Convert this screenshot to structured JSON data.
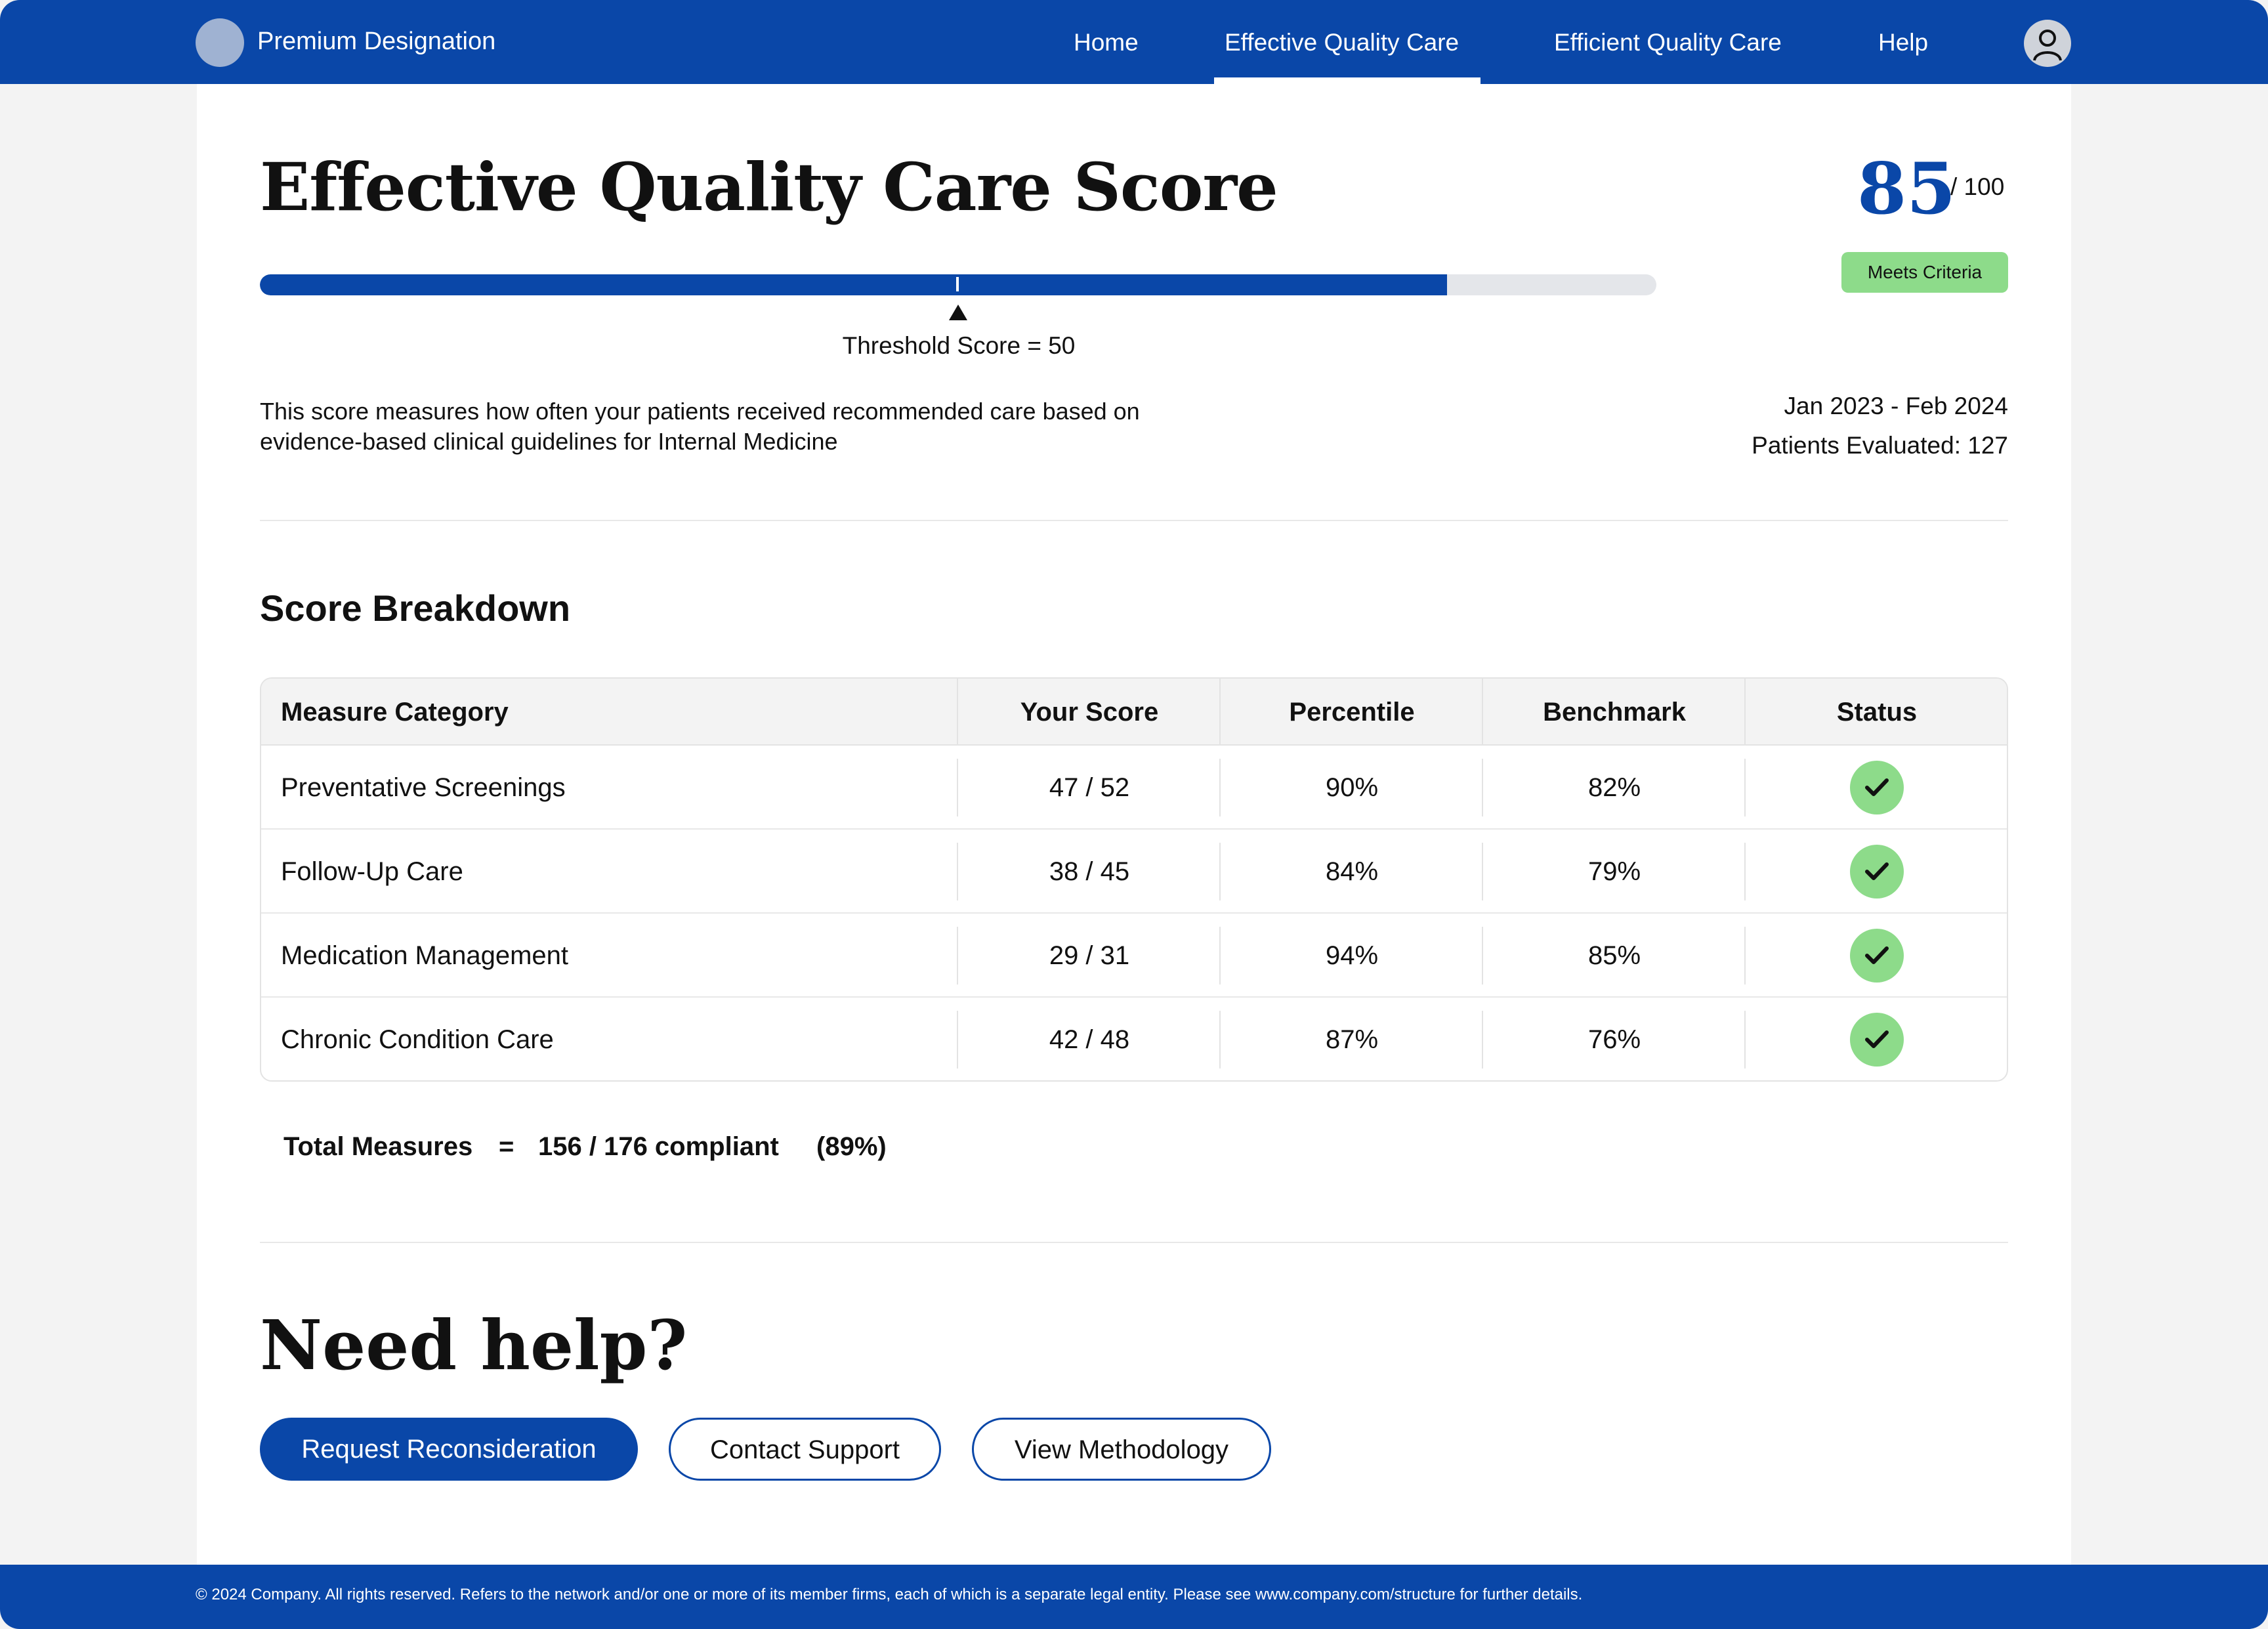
{
  "header": {
    "brand": "Premium Designation",
    "nav": [
      {
        "label": "Home"
      },
      {
        "label": "Effective Quality Care",
        "active": true
      },
      {
        "label": "Efficient Quality Care"
      },
      {
        "label": "Help"
      }
    ],
    "avatar_icon": "user-icon"
  },
  "score": {
    "title": "Effective Quality Care Score",
    "value": "85",
    "max": "/ 100",
    "progress_fraction": 0.85,
    "badge": "Meets Criteria",
    "threshold_label": "Threshold Score = 50",
    "description": "This score measures how often your patients received recommended care based on evidence-based clinical guidelines for Internal Medicine",
    "date_range": "Jan 2023 - Feb 2024",
    "patients_evaluated": "Patients Evaluated: 127"
  },
  "breakdown": {
    "title": "Score Breakdown",
    "columns": [
      "Measure Category",
      "Your Score",
      "Percentile",
      "Benchmark",
      "Status"
    ],
    "rows": [
      {
        "category": "Preventative Screenings",
        "score": "47 / 52",
        "percentile": "90%",
        "benchmark": "82%",
        "status_icon": "check-icon"
      },
      {
        "category": "Follow-Up Care",
        "score": "38 / 45",
        "percentile": "84%",
        "benchmark": "79%",
        "status_icon": "check-icon"
      },
      {
        "category": "Medication Management",
        "score": "29 / 31",
        "percentile": "94%",
        "benchmark": "85%",
        "status_icon": "check-icon"
      },
      {
        "category": "Chronic Condition Care",
        "score": "42 / 48",
        "percentile": "87%",
        "benchmark": "76%",
        "status_icon": "check-icon"
      }
    ],
    "total": {
      "label": "Total Measures",
      "equals": "=",
      "value": "156 / 176 compliant",
      "percent": "(89%)"
    }
  },
  "help": {
    "title": "Need help?",
    "buttons": {
      "reconsider": "Request Reconsideration",
      "support": "Contact Support",
      "methodology": "View Methodology"
    }
  },
  "footer": {
    "text": "© 2024 Company. All rights reserved. Refers to the network and/or one or more of its member firms, each of which is a separate legal entity. Please see www.company.com/structure for further details."
  },
  "colors": {
    "brand_blue": "#0a47a8",
    "success_green": "#8ddb8a",
    "track_gray": "#e4e6ea"
  }
}
